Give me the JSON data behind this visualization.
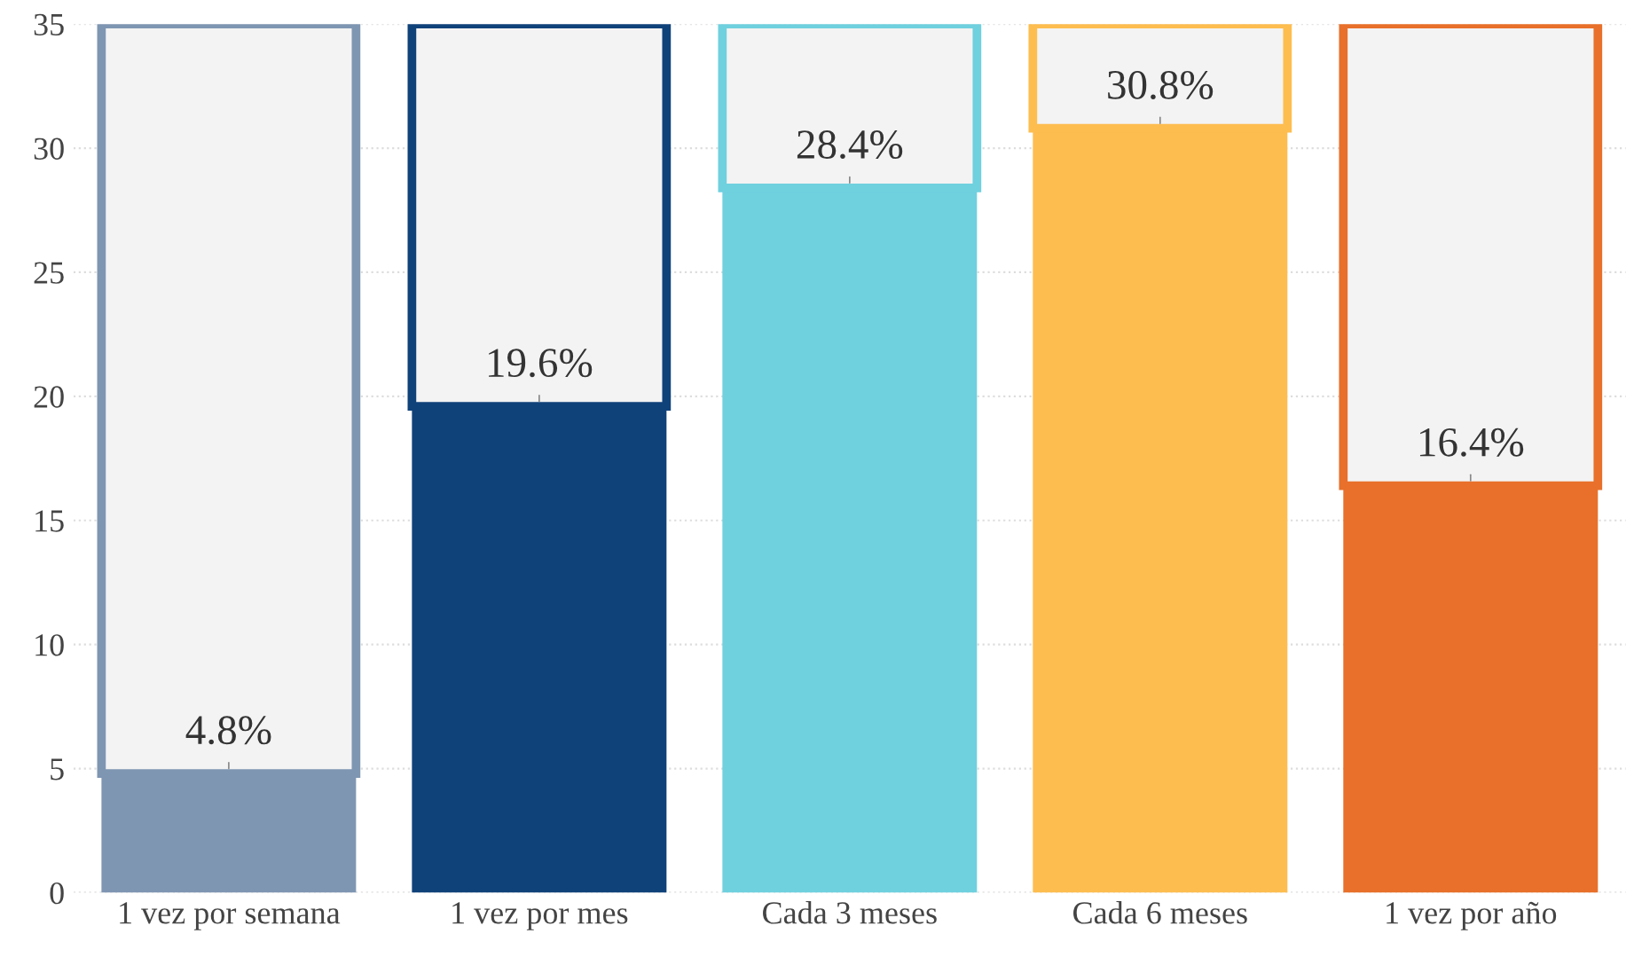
{
  "chart_data": {
    "type": "bar",
    "stacked": true,
    "categories": [
      "1 vez por semana",
      "1 vez por mes",
      "Cada 3 meses",
      "Cada 6 meses",
      "1 vez por año"
    ],
    "series": [
      {
        "colors": [
          "#7f96b2",
          "#10427a",
          "#6fd0de",
          "#fdbd4f",
          "#e8702a"
        ],
        "values": [
          4.8,
          19.6,
          28.4,
          30.8,
          16.4
        ],
        "value_labels": [
          "4.8%",
          "19.6%",
          "28.4%",
          "30.8%",
          "16.4%"
        ]
      },
      {
        "color": "#f3f3f3",
        "values": [
          30.2,
          15.4,
          6.6,
          4.2,
          18.6
        ]
      }
    ],
    "ylim": [
      0,
      35
    ],
    "yticks": [
      0,
      5,
      10,
      15,
      20,
      25,
      30,
      35
    ],
    "grid": true,
    "legend": false
  }
}
